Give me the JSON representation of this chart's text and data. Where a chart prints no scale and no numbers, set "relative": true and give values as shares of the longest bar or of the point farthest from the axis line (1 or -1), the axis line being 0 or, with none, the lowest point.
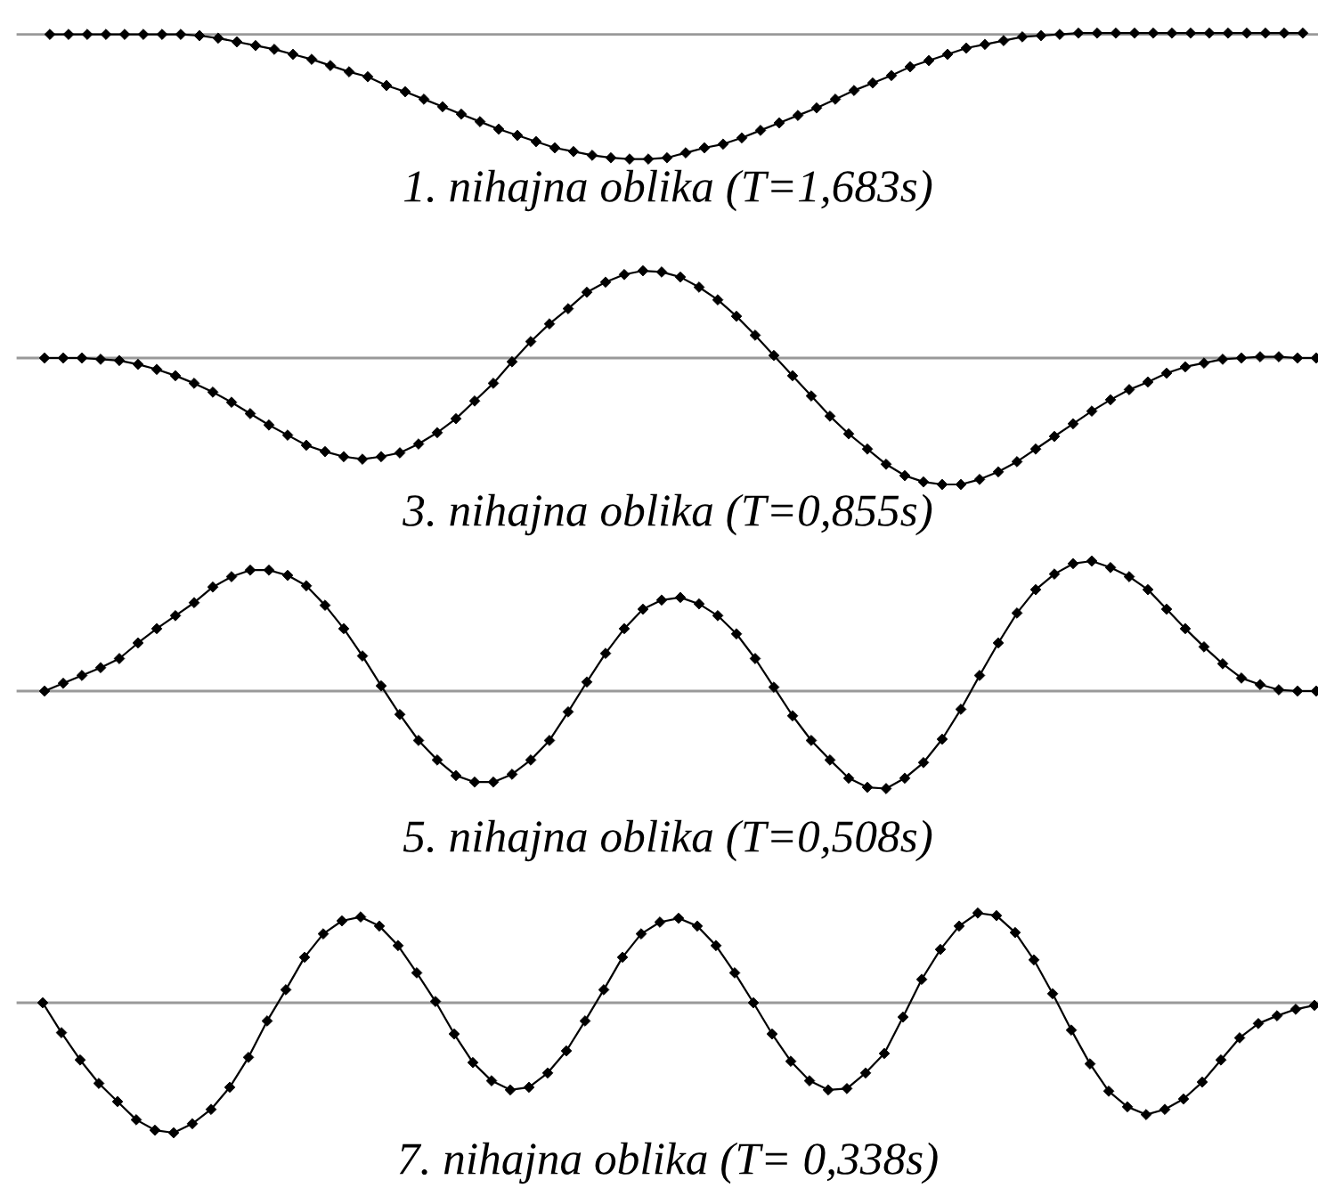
{
  "chart_data": [
    {
      "type": "line",
      "xlabel": "1. nihajna oblika (T=1,683s)",
      "relative": true,
      "marker": "diamond",
      "categories": [
        null,
        null,
        null,
        null,
        null,
        null,
        null,
        null,
        null,
        null,
        null,
        null,
        null,
        null,
        null,
        null,
        null,
        null,
        null,
        null,
        null,
        null,
        null,
        null,
        null,
        null,
        null,
        null,
        null,
        null,
        null,
        null,
        null,
        null,
        null,
        null,
        null,
        null,
        null,
        null,
        null,
        null,
        null,
        null,
        null,
        null,
        null,
        null,
        null,
        null,
        null,
        null,
        null,
        null,
        null,
        null,
        null,
        null,
        null,
        null,
        null,
        null,
        null,
        null,
        null,
        null,
        null,
        null
      ],
      "series": [
        {
          "color": "#000000",
          "values": [
            0,
            0,
            0,
            0,
            0,
            0,
            0,
            0,
            -0.01,
            -0.03,
            -0.06,
            -0.09,
            -0.12,
            -0.16,
            -0.2,
            -0.25,
            -0.3,
            -0.34,
            -0.41,
            -0.46,
            -0.52,
            -0.58,
            -0.64,
            -0.7,
            -0.76,
            -0.81,
            -0.86,
            -0.91,
            -0.94,
            -0.97,
            -0.99,
            -1,
            -1,
            -0.99,
            -0.95,
            -0.91,
            -0.88,
            -0.83,
            -0.77,
            -0.71,
            -0.65,
            -0.59,
            -0.52,
            -0.45,
            -0.39,
            -0.33,
            -0.26,
            -0.21,
            -0.16,
            -0.11,
            -0.08,
            -0.05,
            -0.02,
            -0.01,
            0,
            0.01,
            0.01,
            0.01,
            0.01,
            0.01,
            0.01,
            0.01,
            0.01,
            0.01,
            0.01,
            0.01,
            0.01,
            0.01
          ]
        }
      ]
    },
    {
      "type": "line",
      "xlabel": "3. nihajna oblika (T=0,855s)",
      "relative": true,
      "marker": "diamond",
      "categories": [
        null,
        null,
        null,
        null,
        null,
        null,
        null,
        null,
        null,
        null,
        null,
        null,
        null,
        null,
        null,
        null,
        null,
        null,
        null,
        null,
        null,
        null,
        null,
        null,
        null,
        null,
        null,
        null,
        null,
        null,
        null,
        null,
        null,
        null,
        null,
        null,
        null,
        null,
        null,
        null,
        null,
        null,
        null,
        null,
        null,
        null,
        null,
        null,
        null,
        null,
        null,
        null,
        null,
        null,
        null,
        null,
        null,
        null,
        null,
        null,
        null,
        null,
        null,
        null,
        null,
        null,
        null,
        null,
        null
      ],
      "series": [
        {
          "color": "#000000",
          "values": [
            0,
            0,
            0,
            -0.01,
            -0.02,
            -0.05,
            -0.09,
            -0.14,
            -0.2,
            -0.27,
            -0.35,
            -0.44,
            -0.53,
            -0.61,
            -0.69,
            -0.74,
            -0.78,
            -0.8,
            -0.78,
            -0.75,
            -0.68,
            -0.59,
            -0.48,
            -0.34,
            -0.2,
            -0.03,
            0.13,
            0.27,
            0.39,
            0.52,
            0.6,
            0.66,
            0.69,
            0.68,
            0.64,
            0.56,
            0.46,
            0.33,
            0.18,
            0.02,
            -0.14,
            -0.3,
            -0.46,
            -0.6,
            -0.72,
            -0.84,
            -0.93,
            -0.98,
            -1,
            -1,
            -0.96,
            -0.9,
            -0.82,
            -0.72,
            -0.62,
            -0.52,
            -0.42,
            -0.33,
            -0.25,
            -0.19,
            -0.12,
            -0.07,
            -0.04,
            -0.01,
            0,
            0.01,
            0.01,
            0,
            0
          ]
        }
      ]
    },
    {
      "type": "line",
      "xlabel": "5. nihajna oblika (T=0,508s)",
      "relative": true,
      "marker": "diamond",
      "categories": [
        null,
        null,
        null,
        null,
        null,
        null,
        null,
        null,
        null,
        null,
        null,
        null,
        null,
        null,
        null,
        null,
        null,
        null,
        null,
        null,
        null,
        null,
        null,
        null,
        null,
        null,
        null,
        null,
        null,
        null,
        null,
        null,
        null,
        null,
        null,
        null,
        null,
        null,
        null,
        null,
        null,
        null,
        null,
        null,
        null,
        null,
        null,
        null,
        null,
        null,
        null,
        null,
        null,
        null,
        null,
        null,
        null,
        null,
        null,
        null,
        null,
        null,
        null,
        null,
        null,
        null,
        null,
        null,
        null
      ],
      "series": [
        {
          "color": "#000000",
          "values": [
            0,
            0.06,
            0.12,
            0.18,
            0.25,
            0.37,
            0.48,
            0.58,
            0.68,
            0.8,
            0.88,
            0.93,
            0.93,
            0.89,
            0.81,
            0.66,
            0.48,
            0.27,
            0.04,
            -0.18,
            -0.38,
            -0.53,
            -0.65,
            -0.7,
            -0.7,
            -0.64,
            -0.53,
            -0.38,
            -0.16,
            0.07,
            0.29,
            0.48,
            0.63,
            0.7,
            0.72,
            0.67,
            0.58,
            0.44,
            0.25,
            0.03,
            -0.19,
            -0.38,
            -0.53,
            -0.67,
            -0.74,
            -0.75,
            -0.67,
            -0.55,
            -0.37,
            -0.14,
            0.12,
            0.37,
            0.6,
            0.78,
            0.9,
            0.98,
            1,
            0.95,
            0.88,
            0.78,
            0.63,
            0.48,
            0.34,
            0.21,
            0.1,
            0.05,
            0.01,
            0,
            0
          ]
        }
      ]
    },
    {
      "type": "line",
      "xlabel": "7. nihajna oblika (T= 0,338s)",
      "relative": true,
      "marker": "diamond",
      "categories": [
        null,
        null,
        null,
        null,
        null,
        null,
        null,
        null,
        null,
        null,
        null,
        null,
        null,
        null,
        null,
        null,
        null,
        null,
        null,
        null,
        null,
        null,
        null,
        null,
        null,
        null,
        null,
        null,
        null,
        null,
        null,
        null,
        null,
        null,
        null,
        null,
        null,
        null,
        null,
        null,
        null,
        null,
        null,
        null,
        null,
        null,
        null,
        null,
        null,
        null,
        null,
        null,
        null,
        null,
        null,
        null,
        null,
        null,
        null,
        null,
        null,
        null,
        null,
        null,
        null,
        null,
        null,
        null,
        null
      ],
      "series": [
        {
          "color": "#000000",
          "values": [
            0,
            -0.23,
            -0.44,
            -0.62,
            -0.76,
            -0.9,
            -0.98,
            -1,
            -0.93,
            -0.82,
            -0.65,
            -0.42,
            -0.14,
            0.1,
            0.35,
            0.53,
            0.63,
            0.66,
            0.59,
            0.44,
            0.23,
            0.01,
            -0.24,
            -0.46,
            -0.6,
            -0.67,
            -0.65,
            -0.54,
            -0.37,
            -0.14,
            0.1,
            0.35,
            0.53,
            0.62,
            0.65,
            0.59,
            0.44,
            0.23,
            0,
            -0.24,
            -0.45,
            -0.6,
            -0.67,
            -0.66,
            -0.54,
            -0.39,
            -0.11,
            0.18,
            0.41,
            0.59,
            0.69,
            0.67,
            0.54,
            0.33,
            0.07,
            -0.21,
            -0.47,
            -0.68,
            -0.8,
            -0.86,
            -0.82,
            -0.74,
            -0.61,
            -0.44,
            -0.27,
            -0.16,
            -0.1,
            -0.05,
            -0.02
          ]
        }
      ]
    }
  ]
}
